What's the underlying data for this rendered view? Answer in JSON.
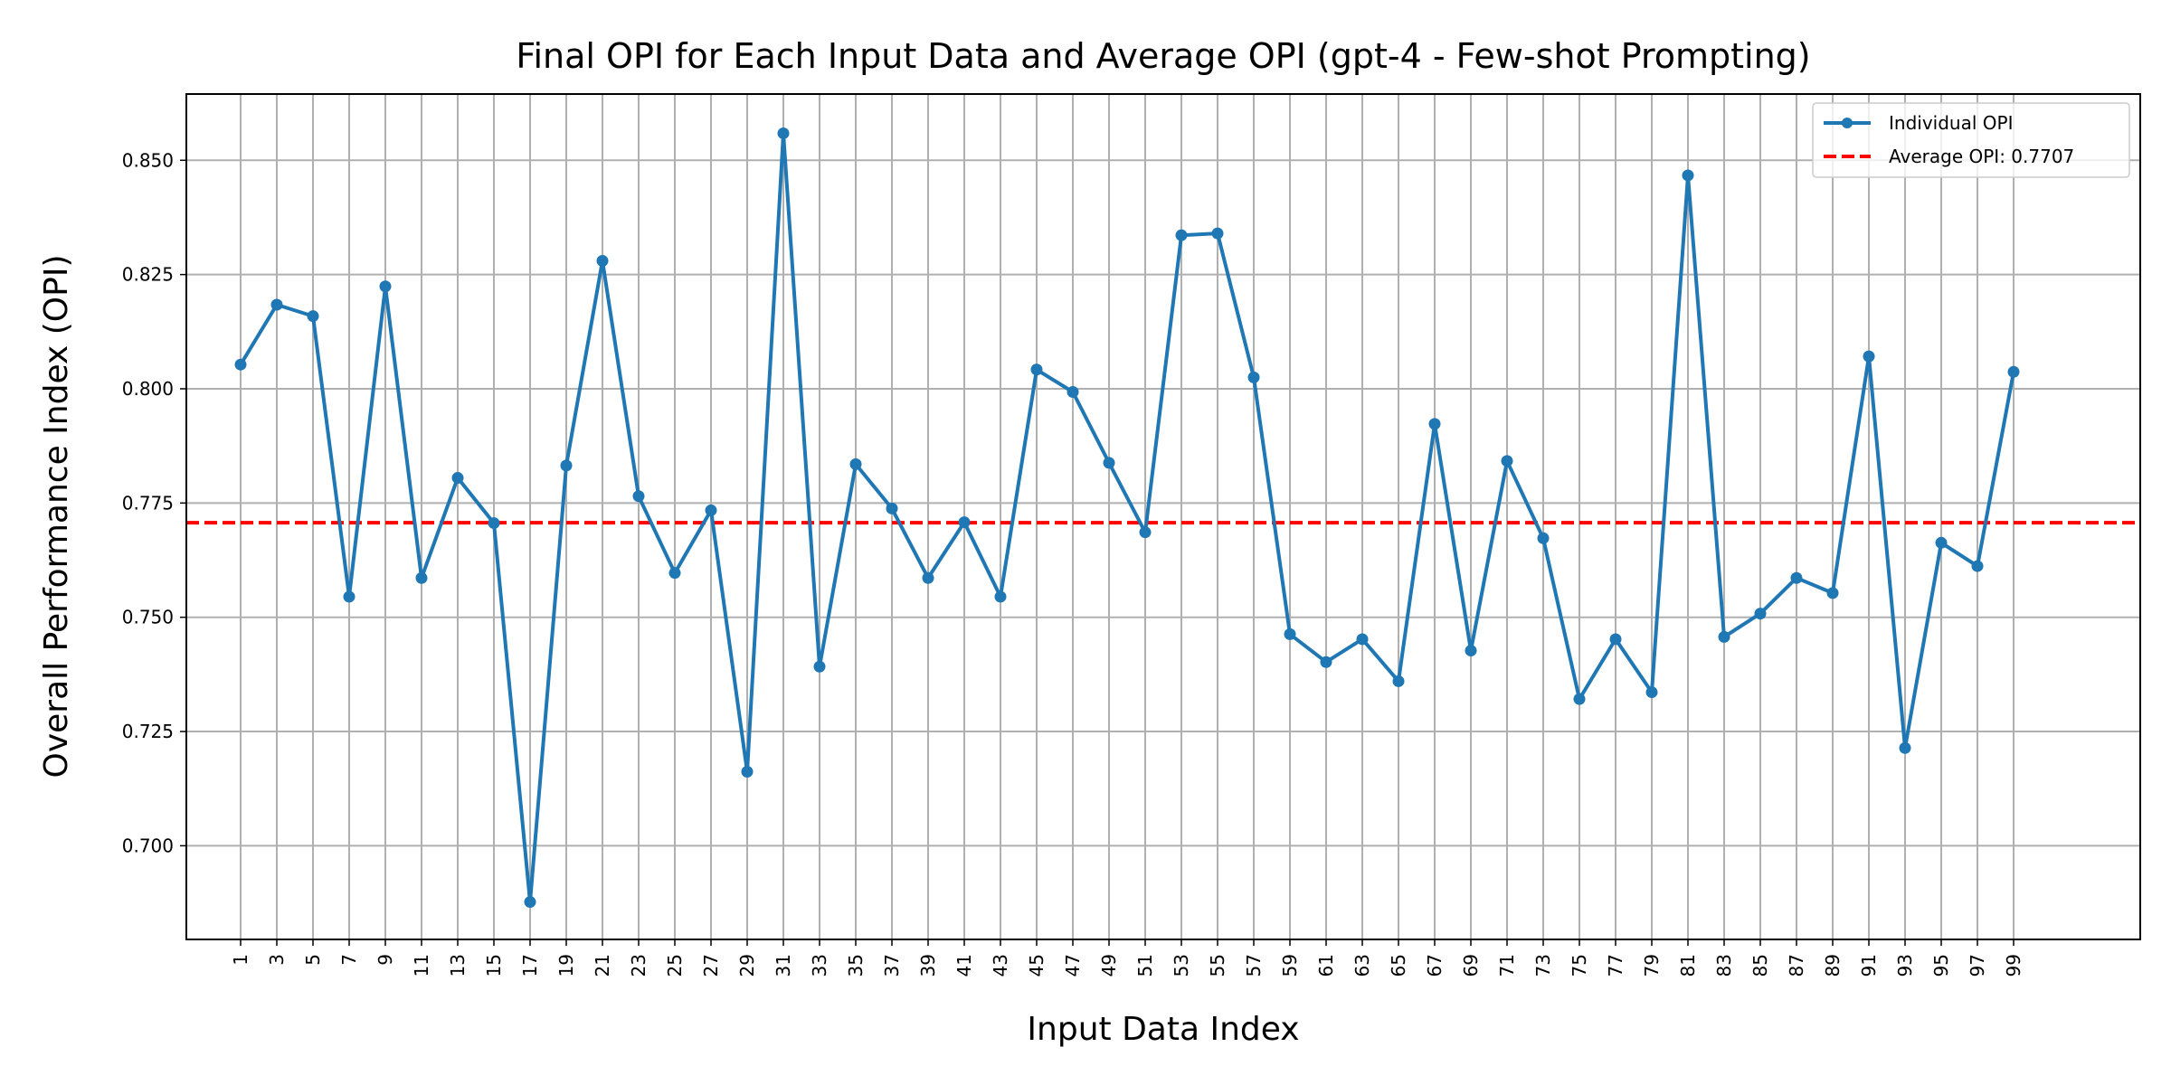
{
  "chart_data": {
    "type": "line",
    "title": "Final OPI for Each Input Data and Average OPI (gpt-4 - Few-shot Prompting)",
    "xlabel": "Input Data Index",
    "ylabel": "Overall Performance Index (OPI)",
    "xlim": [
      -1.5,
      52.5
    ],
    "ylim": [
      0.6795,
      0.8645
    ],
    "yticks": [
      0.7,
      0.725,
      0.75,
      0.775,
      0.8,
      0.825,
      0.85
    ],
    "ytick_labels": [
      "0.700",
      "0.725",
      "0.750",
      "0.775",
      "0.800",
      "0.825",
      "0.850"
    ],
    "x": [
      "1",
      "3",
      "5",
      "7",
      "9",
      "11",
      "13",
      "15",
      "17",
      "19",
      "21",
      "23",
      "25",
      "27",
      "29",
      "31",
      "33",
      "35",
      "37",
      "39",
      "41",
      "43",
      "45",
      "47",
      "49",
      "51",
      "53",
      "55",
      "57",
      "59",
      "61",
      "63",
      "65",
      "67",
      "69",
      "71",
      "73",
      "75",
      "77",
      "79",
      "81",
      "83",
      "85",
      "87",
      "89",
      "91",
      "93",
      "95",
      "97",
      "99"
    ],
    "grid": true,
    "legend_position": "top-right",
    "series": [
      {
        "name": "Individual OPI",
        "color": "#1f77b4",
        "style": "line-with-markers",
        "values": [
          0.8053,
          0.8184,
          0.8159,
          0.7545,
          0.8224,
          0.7586,
          0.7805,
          0.7706,
          0.6877,
          0.7832,
          0.828,
          0.7765,
          0.7597,
          0.7734,
          0.7162,
          0.8559,
          0.7392,
          0.7835,
          0.7738,
          0.7586,
          0.7708,
          0.7545,
          0.8042,
          0.7993,
          0.7838,
          0.7686,
          0.8336,
          0.834,
          0.8025,
          0.7463,
          0.7402,
          0.7452,
          0.736,
          0.7923,
          0.7427,
          0.7842,
          0.7673,
          0.7321,
          0.7452,
          0.7336,
          0.8467,
          0.7457,
          0.7508,
          0.7586,
          0.7553,
          0.8071,
          0.7214,
          0.7663,
          0.7612,
          0.8037
        ]
      }
    ],
    "reference_line": {
      "name": "Average OPI: 0.7707",
      "value": 0.7707,
      "color": "#ff0000",
      "style": "dashed"
    }
  }
}
